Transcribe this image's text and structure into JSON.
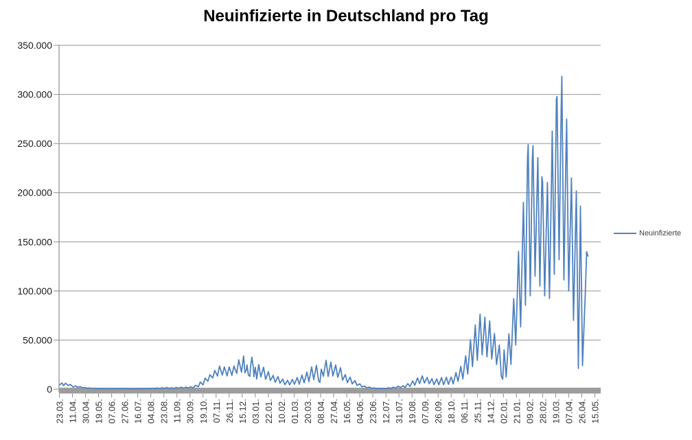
{
  "chart": {
    "colors": {
      "series": "#4F81BD",
      "gridline": "#929292",
      "axis": "#8C8C8C",
      "axis_bar": "#9C9C9C",
      "y_label_text": "#1a1a1a",
      "x_label_text": "#333333",
      "title_text": "#000000",
      "background": "#ffffff"
    }
  },
  "chart_data": {
    "type": "line",
    "title": "Neuinfizierte in Deutschland pro Tag",
    "xlabel": "",
    "ylabel": "",
    "ylim": [
      0,
      350000
    ],
    "grid": "horizontal-gridlines",
    "legend_position": "right",
    "x_label_step": 19,
    "categories_count": 788,
    "y_ticks": [
      {
        "value": 350000,
        "label": "350.000"
      },
      {
        "value": 300000,
        "label": "300.000"
      },
      {
        "value": 250000,
        "label": "250.000"
      },
      {
        "value": 200000,
        "label": "200.000"
      },
      {
        "value": 150000,
        "label": "150.000"
      },
      {
        "value": 100000,
        "label": "100.000"
      },
      {
        "value": 50000,
        "label": "50.000"
      },
      {
        "value": 0,
        "label": "0"
      }
    ],
    "x_tick_labels": [
      "23.03.",
      "11.04.",
      "30.04.",
      "19.05.",
      "07.06.",
      "27.06.",
      "16.07.",
      "04.08.",
      "23.08.",
      "11.09.",
      "30.09.",
      "19.10.",
      "07.11.",
      "26.11.",
      "15.12.",
      "03.01.",
      "22.01.",
      "10.02.",
      "01.03.",
      "20.03.",
      "08.04.",
      "27.04.",
      "16.05.",
      "04.06.",
      "23.06.",
      "12.07.",
      "31.07.",
      "19.08.",
      "07.09.",
      "26.09.",
      "18.10.",
      "06.11.",
      "25.11.",
      "14.12.",
      "02.01.",
      "21.01.",
      "09.02.",
      "28.02.",
      "19.03.",
      "07.04.",
      "26.04.",
      "15.05."
    ],
    "series": [
      {
        "name": "Neuinfizierte",
        "points": [
          [
            0,
            4300
          ],
          [
            2,
            5300
          ],
          [
            4,
            6300
          ],
          [
            6,
            3600
          ],
          [
            9,
            6100
          ],
          [
            13,
            3700
          ],
          [
            16,
            4900
          ],
          [
            20,
            2200
          ],
          [
            23,
            3400
          ],
          [
            27,
            1900
          ],
          [
            30,
            2700
          ],
          [
            34,
            1300
          ],
          [
            37,
            1800
          ],
          [
            41,
            900
          ],
          [
            44,
            1300
          ],
          [
            48,
            600
          ],
          [
            51,
            1000
          ],
          [
            55,
            500
          ],
          [
            58,
            800
          ],
          [
            62,
            420
          ],
          [
            65,
            700
          ],
          [
            69,
            350
          ],
          [
            72,
            600
          ],
          [
            76,
            310
          ],
          [
            79,
            650
          ],
          [
            83,
            350
          ],
          [
            86,
            580
          ],
          [
            88,
            770
          ],
          [
            90,
            380
          ],
          [
            93,
            690
          ],
          [
            97,
            400
          ],
          [
            100,
            560
          ],
          [
            104,
            300
          ],
          [
            107,
            480
          ],
          [
            111,
            340
          ],
          [
            114,
            560
          ],
          [
            118,
            320
          ],
          [
            121,
            630
          ],
          [
            125,
            380
          ],
          [
            128,
            800
          ],
          [
            132,
            450
          ],
          [
            135,
            1000
          ],
          [
            139,
            520
          ],
          [
            142,
            1250
          ],
          [
            146,
            620
          ],
          [
            149,
            1450
          ],
          [
            153,
            720
          ],
          [
            156,
            1700
          ],
          [
            160,
            820
          ],
          [
            163,
            1510
          ],
          [
            167,
            710
          ],
          [
            170,
            1820
          ],
          [
            174,
            920
          ],
          [
            177,
            2100
          ],
          [
            181,
            1010
          ],
          [
            184,
            2190
          ],
          [
            188,
            1150
          ],
          [
            191,
            2500
          ],
          [
            195,
            1400
          ],
          [
            198,
            4000
          ],
          [
            202,
            2500
          ],
          [
            205,
            7330
          ],
          [
            209,
            4300
          ],
          [
            212,
            11290
          ],
          [
            216,
            8000
          ],
          [
            219,
            14710
          ],
          [
            223,
            11400
          ],
          [
            226,
            19060
          ],
          [
            230,
            13400
          ],
          [
            233,
            23540
          ],
          [
            237,
            14400
          ],
          [
            240,
            22600
          ],
          [
            244,
            13550
          ],
          [
            247,
            22800
          ],
          [
            251,
            14050
          ],
          [
            254,
            23680
          ],
          [
            258,
            16000
          ],
          [
            261,
            29880
          ],
          [
            265,
            17270
          ],
          [
            268,
            33770
          ],
          [
            270,
            16640
          ],
          [
            272,
            19530
          ],
          [
            273,
            24740
          ],
          [
            275,
            14460
          ],
          [
            277,
            13000
          ],
          [
            278,
            22460
          ],
          [
            280,
            32550
          ],
          [
            282,
            22920
          ],
          [
            283,
            12690
          ],
          [
            285,
            22230
          ],
          [
            287,
            10310
          ],
          [
            290,
            25160
          ],
          [
            293,
            12500
          ],
          [
            297,
            22370
          ],
          [
            300,
            10000
          ],
          [
            304,
            17860
          ],
          [
            307,
            8900
          ],
          [
            311,
            14020
          ],
          [
            314,
            7000
          ],
          [
            318,
            12910
          ],
          [
            321,
            6200
          ],
          [
            325,
            10240
          ],
          [
            328,
            4530
          ],
          [
            332,
            9110
          ],
          [
            335,
            4370
          ],
          [
            339,
            9990
          ],
          [
            342,
            5000
          ],
          [
            346,
            11910
          ],
          [
            349,
            5100
          ],
          [
            353,
            14360
          ],
          [
            356,
            6600
          ],
          [
            360,
            17500
          ],
          [
            363,
            7700
          ],
          [
            367,
            22660
          ],
          [
            370,
            9870
          ],
          [
            374,
            24300
          ],
          [
            377,
            8500
          ],
          [
            379,
            6890
          ],
          [
            381,
            20410
          ],
          [
            384,
            13200
          ],
          [
            388,
            29430
          ],
          [
            391,
            13000
          ],
          [
            395,
            27540
          ],
          [
            398,
            13500
          ],
          [
            402,
            24740
          ],
          [
            405,
            12000
          ],
          [
            409,
            21950
          ],
          [
            412,
            9160
          ],
          [
            416,
            14910
          ],
          [
            419,
            6710
          ],
          [
            423,
            12300
          ],
          [
            426,
            5400
          ],
          [
            430,
            8770
          ],
          [
            433,
            3900
          ],
          [
            437,
            5430
          ],
          [
            440,
            2440
          ],
          [
            444,
            3190
          ],
          [
            447,
            1500
          ],
          [
            451,
            2200
          ],
          [
            454,
            900
          ],
          [
            458,
            1330
          ],
          [
            461,
            540
          ],
          [
            465,
            890
          ],
          [
            468,
            440
          ],
          [
            472,
            970
          ],
          [
            475,
            500
          ],
          [
            479,
            1460
          ],
          [
            482,
            750
          ],
          [
            486,
            2090
          ],
          [
            489,
            1000
          ],
          [
            493,
            3140
          ],
          [
            496,
            1540
          ],
          [
            500,
            3540
          ],
          [
            503,
            1800
          ],
          [
            507,
            5640
          ],
          [
            510,
            2800
          ],
          [
            514,
            8440
          ],
          [
            517,
            4000
          ],
          [
            521,
            11560
          ],
          [
            524,
            5750
          ],
          [
            528,
            13530
          ],
          [
            531,
            6270
          ],
          [
            535,
            12030
          ],
          [
            538,
            5510
          ],
          [
            542,
            10700
          ],
          [
            545,
            4660
          ],
          [
            549,
            10450
          ],
          [
            552,
            4520
          ],
          [
            556,
            11780
          ],
          [
            559,
            4520
          ],
          [
            563,
            12150
          ],
          [
            566,
            4970
          ],
          [
            570,
            12380
          ],
          [
            573,
            5480
          ],
          [
            577,
            16980
          ],
          [
            580,
            7880
          ],
          [
            584,
            23210
          ],
          [
            587,
            10470
          ],
          [
            591,
            33940
          ],
          [
            594,
            15510
          ],
          [
            598,
            50200
          ],
          [
            601,
            23000
          ],
          [
            605,
            65370
          ],
          [
            608,
            29360
          ],
          [
            612,
            76410
          ],
          [
            615,
            35000
          ],
          [
            619,
            73210
          ],
          [
            622,
            33000
          ],
          [
            626,
            69600
          ],
          [
            629,
            30820
          ],
          [
            633,
            56680
          ],
          [
            636,
            25140
          ],
          [
            640,
            44930
          ],
          [
            643,
            13000
          ],
          [
            645,
            10100
          ],
          [
            647,
            40040
          ],
          [
            650,
            12520
          ],
          [
            654,
            56340
          ],
          [
            657,
            25250
          ],
          [
            661,
            92220
          ],
          [
            664,
            45000
          ],
          [
            668,
            140160
          ],
          [
            671,
            63390
          ],
          [
            675,
            190150
          ],
          [
            678,
            85470
          ],
          [
            681,
            236120
          ],
          [
            682,
            248840
          ],
          [
            685,
            95000
          ],
          [
            688,
            234250
          ],
          [
            689,
            247860
          ],
          [
            692,
            115000
          ],
          [
            696,
            235630
          ],
          [
            699,
            105000
          ],
          [
            702,
            216320
          ],
          [
            703,
            210670
          ],
          [
            706,
            95000
          ],
          [
            710,
            210530
          ],
          [
            713,
            92380
          ],
          [
            716,
            215850
          ],
          [
            717,
            262750
          ],
          [
            720,
            116890
          ],
          [
            723,
            294930
          ],
          [
            724,
            297850
          ],
          [
            727,
            131790
          ],
          [
            730,
            283100
          ],
          [
            731,
            318390
          ],
          [
            734,
            111220
          ],
          [
            737,
            237350
          ],
          [
            738,
            274900
          ],
          [
            741,
            100000
          ],
          [
            745,
            214990
          ],
          [
            748,
            70050
          ],
          [
            752,
            201730
          ],
          [
            755,
            21070
          ],
          [
            758,
            186330
          ],
          [
            761,
            23970
          ],
          [
            765,
            96280
          ],
          [
            767,
            139920
          ],
          [
            769,
            135480
          ]
        ]
      }
    ]
  }
}
